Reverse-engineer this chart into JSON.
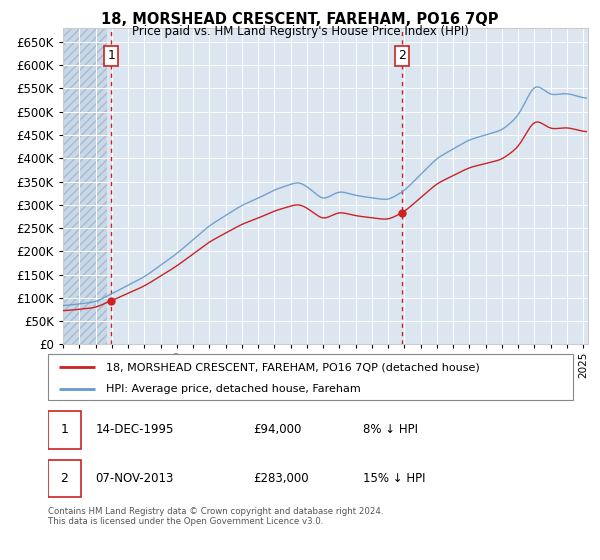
{
  "title": "18, MORSHEAD CRESCENT, FAREHAM, PO16 7QP",
  "subtitle": "Price paid vs. HM Land Registry's House Price Index (HPI)",
  "ylim": [
    0,
    680000
  ],
  "xlim_start": 1993.0,
  "xlim_end": 2025.3,
  "legend_line1": "18, MORSHEAD CRESCENT, FAREHAM, PO16 7QP (detached house)",
  "legend_line2": "HPI: Average price, detached house, Fareham",
  "annotation1_date": "14-DEC-1995",
  "annotation1_price": "£94,000",
  "annotation1_hpi": "8% ↓ HPI",
  "annotation2_date": "07-NOV-2013",
  "annotation2_price": "£283,000",
  "annotation2_hpi": "15% ↓ HPI",
  "footnote": "Contains HM Land Registry data © Crown copyright and database right 2024.\nThis data is licensed under the Open Government Licence v3.0.",
  "sale1_x": 1995.96,
  "sale1_y": 94000,
  "sale2_x": 2013.85,
  "sale2_y": 283000,
  "plot_bg": "#dce6f1",
  "hatch_bg": "#c8d8e8",
  "grid_color": "#ffffff",
  "line_red": "#cc2222",
  "line_blue": "#6699cc",
  "dot_color": "#cc2222",
  "vline_color": "#cc2222",
  "box_edge_color": "#cc2222"
}
